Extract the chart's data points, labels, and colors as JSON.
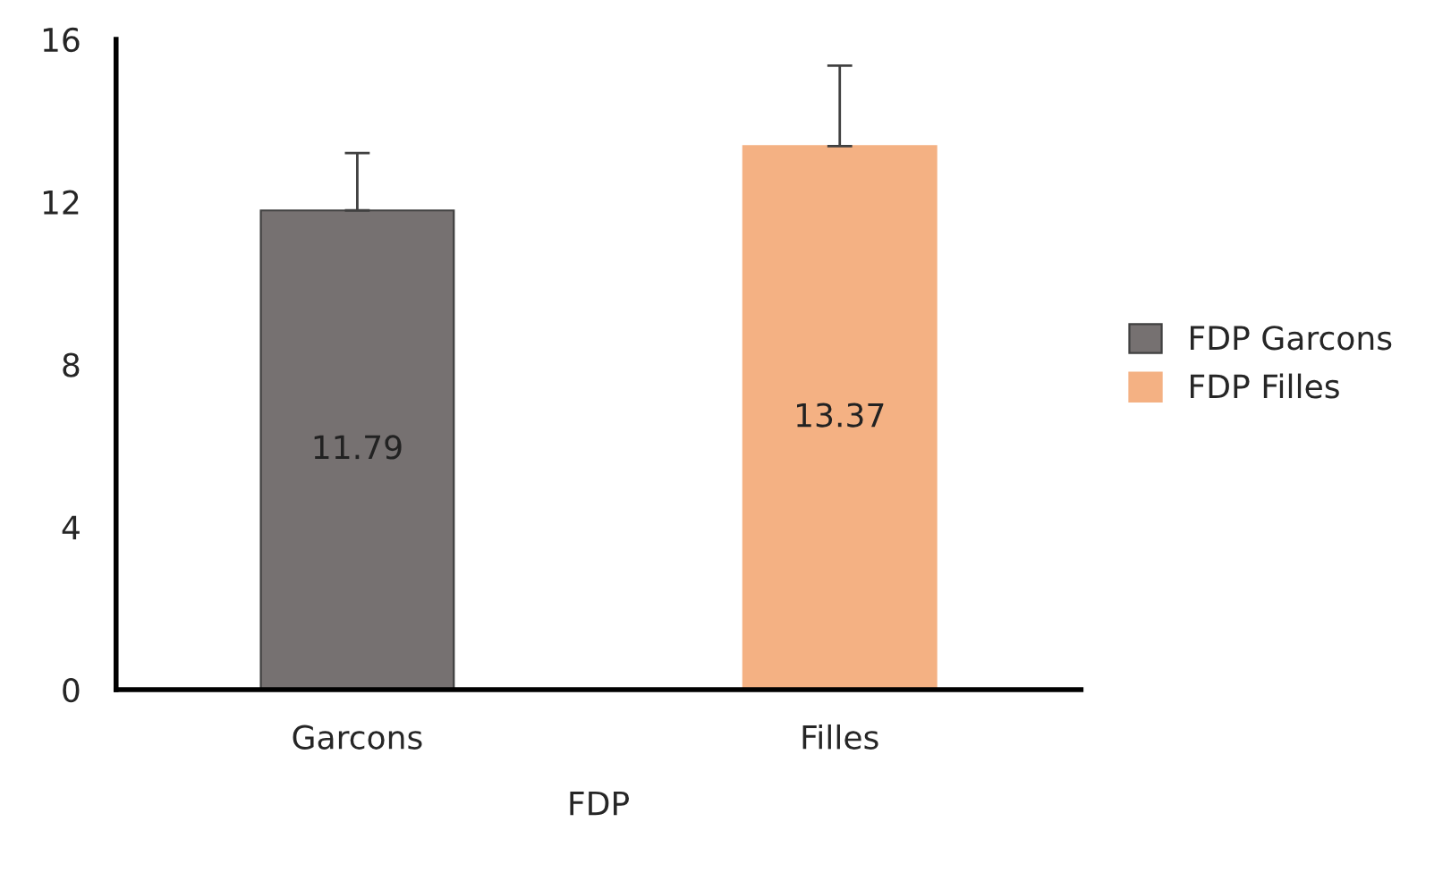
{
  "chart_data": {
    "type": "bar",
    "xlabel": "FDP",
    "categories": [
      "Garcons",
      "Filles"
    ],
    "series": [
      {
        "name": "FDP Garcons",
        "color": "#767171",
        "values": [
          11.79,
          null
        ],
        "errors": [
          [
            11.79,
            13.2
          ],
          null
        ]
      },
      {
        "name": "FDP Filles",
        "color": "#f4b183",
        "values": [
          null,
          13.37
        ],
        "errors": [
          null,
          [
            13.37,
            15.35
          ]
        ]
      }
    ],
    "ylim": [
      0,
      16
    ],
    "yticks": [
      0,
      4,
      8,
      12,
      16
    ],
    "data_labels": true,
    "legend": "right",
    "grid": false
  }
}
